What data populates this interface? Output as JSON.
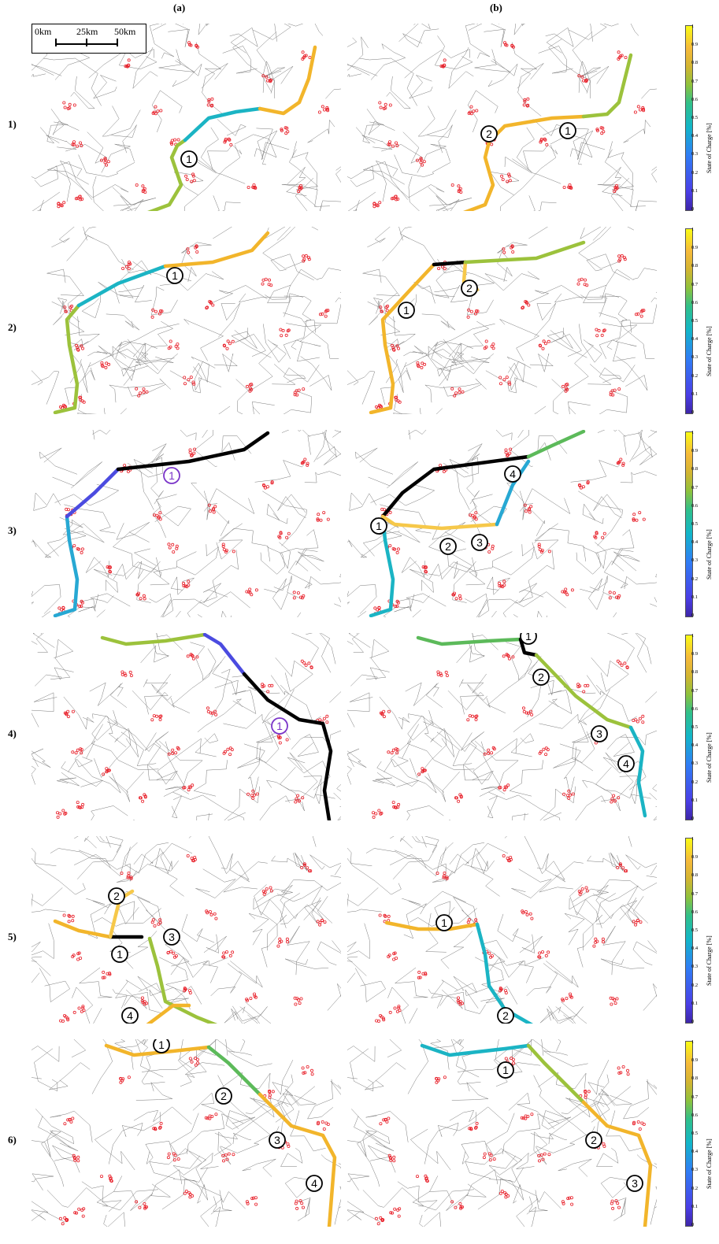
{
  "columns": [
    "(a)",
    "(b)"
  ],
  "rows": [
    "1)",
    "2)",
    "3)",
    "4)",
    "5)",
    "6)"
  ],
  "scale_bar": {
    "labels": [
      "0km",
      "25km",
      "50km"
    ]
  },
  "colorbar": {
    "title": "State of Charge [%]",
    "ticks": [
      "1",
      "0.9",
      "0.8",
      "0.7",
      "0.6",
      "0.5",
      "0.4",
      "0.3",
      "0.2",
      "0.1",
      "0"
    ]
  },
  "colors": {
    "road": "#7a7a7a",
    "station": "#e8202a",
    "deep_discharge": "#000000",
    "marker_default": "#000000",
    "marker_violation": "#7b35c9"
  },
  "panels": [
    {
      "id": "1a",
      "markers": [
        "1"
      ]
    },
    {
      "id": "1b",
      "markers": [
        "1",
        "2"
      ]
    },
    {
      "id": "2a",
      "markers": [
        "1"
      ]
    },
    {
      "id": "2b",
      "markers": [
        "1",
        "2"
      ]
    },
    {
      "id": "3a",
      "markers": [
        "1"
      ]
    },
    {
      "id": "3b",
      "markers": [
        "1",
        "2",
        "3",
        "4"
      ]
    },
    {
      "id": "4a",
      "markers": [
        "1"
      ]
    },
    {
      "id": "4b",
      "markers": [
        "1",
        "2",
        "3",
        "4"
      ]
    },
    {
      "id": "5a",
      "markers": [
        "1",
        "2",
        "3",
        "4"
      ]
    },
    {
      "id": "5b",
      "markers": [
        "1",
        "2"
      ]
    },
    {
      "id": "6a",
      "markers": [
        "1",
        "2",
        "3",
        "4"
      ]
    },
    {
      "id": "6b",
      "markers": [
        "1",
        "2",
        "3"
      ]
    }
  ]
}
